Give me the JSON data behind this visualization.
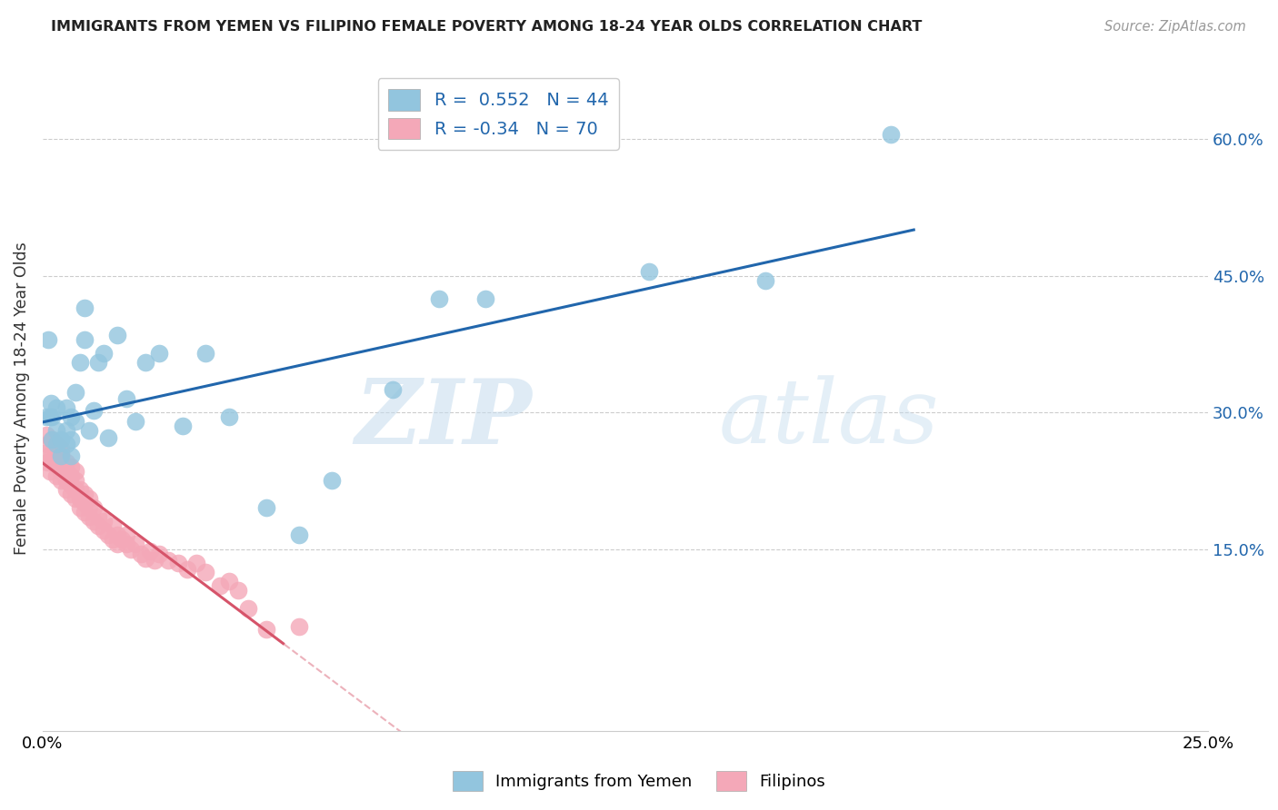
{
  "title": "IMMIGRANTS FROM YEMEN VS FILIPINO FEMALE POVERTY AMONG 18-24 YEAR OLDS CORRELATION CHART",
  "source": "Source: ZipAtlas.com",
  "ylabel": "Female Poverty Among 18-24 Year Olds",
  "y_tick_labels": [
    "15.0%",
    "30.0%",
    "45.0%",
    "60.0%"
  ],
  "y_tick_positions": [
    0.15,
    0.3,
    0.45,
    0.6
  ],
  "xlim": [
    0.0,
    0.25
  ],
  "ylim": [
    -0.05,
    0.68
  ],
  "legend_label_1": "Immigrants from Yemen",
  "legend_label_2": "Filipinos",
  "R1": 0.552,
  "N1": 44,
  "R2": -0.34,
  "N2": 70,
  "color_blue": "#92c5de",
  "color_pink": "#f4a8b8",
  "color_blue_line": "#2166ac",
  "color_pink_line": "#d6546a",
  "background_color": "#ffffff",
  "watermark_zip": "ZIP",
  "watermark_atlas": "atlas",
  "blue_points_x": [
    0.0008,
    0.0012,
    0.0015,
    0.0018,
    0.002,
    0.002,
    0.003,
    0.003,
    0.003,
    0.004,
    0.004,
    0.005,
    0.005,
    0.005,
    0.006,
    0.006,
    0.006,
    0.007,
    0.007,
    0.008,
    0.009,
    0.009,
    0.01,
    0.011,
    0.012,
    0.013,
    0.014,
    0.016,
    0.018,
    0.02,
    0.022,
    0.025,
    0.03,
    0.035,
    0.04,
    0.048,
    0.055,
    0.062,
    0.075,
    0.085,
    0.095,
    0.13,
    0.155,
    0.182
  ],
  "blue_points_y": [
    0.295,
    0.38,
    0.295,
    0.31,
    0.27,
    0.295,
    0.265,
    0.28,
    0.305,
    0.252,
    0.27,
    0.265,
    0.28,
    0.305,
    0.252,
    0.27,
    0.295,
    0.29,
    0.322,
    0.355,
    0.38,
    0.415,
    0.28,
    0.302,
    0.355,
    0.365,
    0.272,
    0.385,
    0.315,
    0.29,
    0.355,
    0.365,
    0.285,
    0.365,
    0.295,
    0.195,
    0.165,
    0.225,
    0.325,
    0.425,
    0.425,
    0.455,
    0.445,
    0.605
  ],
  "pink_points_x": [
    0.0005,
    0.0008,
    0.001,
    0.001,
    0.0015,
    0.002,
    0.002,
    0.002,
    0.003,
    0.003,
    0.003,
    0.003,
    0.004,
    0.004,
    0.004,
    0.004,
    0.004,
    0.005,
    0.005,
    0.005,
    0.005,
    0.006,
    0.006,
    0.006,
    0.006,
    0.007,
    0.007,
    0.007,
    0.007,
    0.008,
    0.008,
    0.008,
    0.009,
    0.009,
    0.009,
    0.01,
    0.01,
    0.01,
    0.011,
    0.011,
    0.012,
    0.012,
    0.013,
    0.013,
    0.014,
    0.015,
    0.015,
    0.016,
    0.016,
    0.017,
    0.018,
    0.018,
    0.019,
    0.02,
    0.021,
    0.022,
    0.023,
    0.024,
    0.025,
    0.027,
    0.029,
    0.031,
    0.033,
    0.035,
    0.038,
    0.04,
    0.042,
    0.044,
    0.048,
    0.055
  ],
  "pink_points_y": [
    0.255,
    0.275,
    0.245,
    0.265,
    0.235,
    0.245,
    0.255,
    0.27,
    0.23,
    0.245,
    0.255,
    0.265,
    0.225,
    0.235,
    0.245,
    0.255,
    0.26,
    0.215,
    0.225,
    0.235,
    0.245,
    0.21,
    0.22,
    0.23,
    0.24,
    0.205,
    0.215,
    0.225,
    0.235,
    0.195,
    0.205,
    0.215,
    0.19,
    0.2,
    0.21,
    0.185,
    0.195,
    0.205,
    0.18,
    0.195,
    0.175,
    0.185,
    0.17,
    0.18,
    0.165,
    0.16,
    0.175,
    0.155,
    0.165,
    0.16,
    0.155,
    0.165,
    0.15,
    0.155,
    0.145,
    0.14,
    0.148,
    0.138,
    0.145,
    0.138,
    0.135,
    0.128,
    0.135,
    0.125,
    0.11,
    0.115,
    0.105,
    0.085,
    0.062,
    0.065
  ]
}
